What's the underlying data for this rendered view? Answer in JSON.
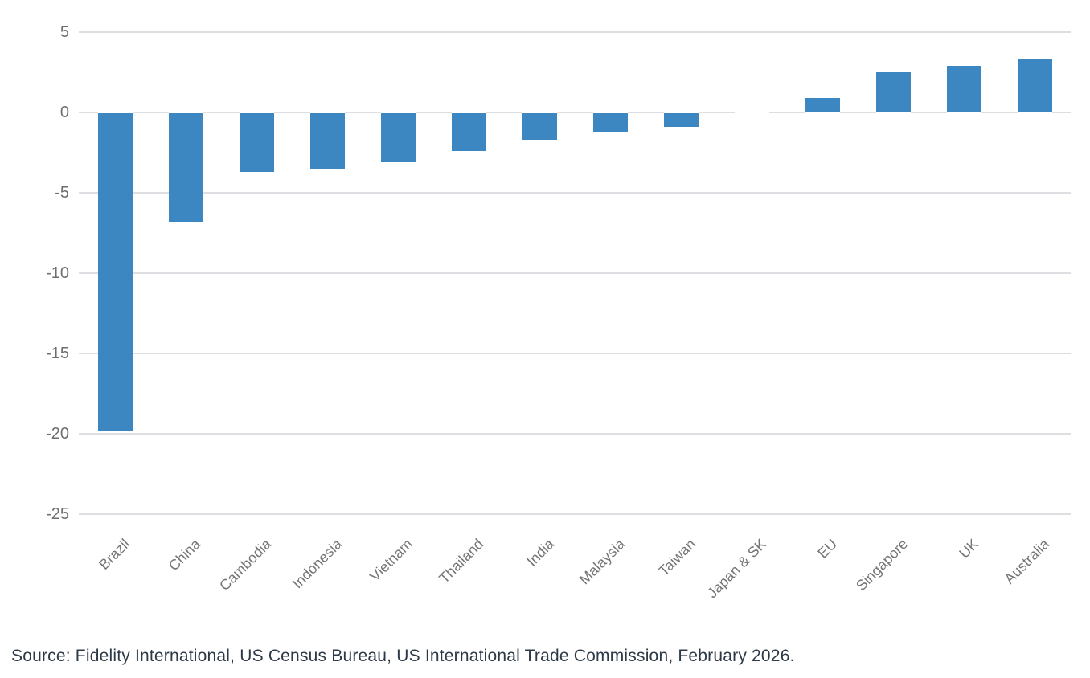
{
  "chart_data": {
    "type": "bar",
    "categories": [
      "Brazil",
      "China",
      "Cambodia",
      "Indonesia",
      "Vietnam",
      "Thailand",
      "India",
      "Malaysia",
      "Taiwan",
      "Japan & SK",
      "EU",
      "Singapore",
      "UK",
      "Australia"
    ],
    "values": [
      -19.8,
      -6.8,
      -3.7,
      -3.5,
      -3.1,
      -2.4,
      -1.7,
      -1.2,
      -0.9,
      0,
      0.9,
      2.5,
      2.9,
      3.3
    ],
    "title": "",
    "xlabel": "",
    "ylabel": "",
    "ylim": [
      -25,
      5
    ],
    "yticks": [
      5,
      0,
      -5,
      -10,
      -15,
      -20,
      -25
    ],
    "ytick_labels": [
      "5",
      "0",
      "-5",
      "-10",
      "-15",
      "-20",
      "-25"
    ],
    "grid": true,
    "legend": "none",
    "bar_color": "#3c87c1"
  },
  "source_note": "Source: Fidelity International, US Census Bureau, US International Trade Commission, February 2026.",
  "colors": {
    "bar": "#3c87c1",
    "gridline": "#dcdee2",
    "axis_tick_label": "#6e6e6e",
    "category_label": "#757575",
    "source_text": "#2d3947",
    "background": "#ffffff"
  }
}
